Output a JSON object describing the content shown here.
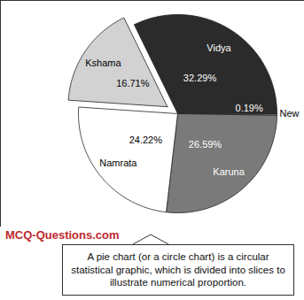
{
  "chart_data": {
    "type": "pie",
    "categories": [
      "Vidya",
      "New",
      "Karuna",
      "Namrata",
      "Kshama"
    ],
    "values": [
      32.29,
      0.19,
      26.59,
      24.22,
      16.71
    ],
    "value_labels": [
      "32.29%",
      "0.19%",
      "26.59%",
      "24.22%",
      "16.71%"
    ],
    "colors": [
      "#2b2b2b",
      "#bdbdbd",
      "#7a7a7a",
      "#ffffff",
      "#d2d2d2"
    ],
    "data_labels": true,
    "annotations": [
      "MCQ-Questions.com",
      "A pie chart (or a circle chart) is a circular statistical graphic, which is divided into slices to illustrate numerical proportion."
    ]
  }
}
